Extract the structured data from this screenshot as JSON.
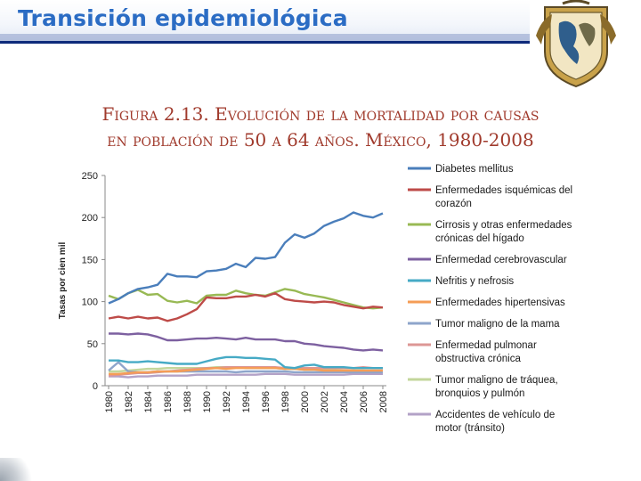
{
  "slide": {
    "title": "Transición epidemiológica"
  },
  "logo": {
    "name": "unam-crest"
  },
  "figure": {
    "line1": "Figura 2.13. Evolución de la mortalidad por causas",
    "line2": "en población de 50 a 64 años. México, 1980-2008"
  },
  "chart_data": {
    "type": "line",
    "ylabel": "Tasas por cien mil",
    "xlabel": "",
    "ylim": [
      0,
      250
    ],
    "yticks": [
      0,
      50,
      100,
      150,
      200,
      250
    ],
    "x": [
      1980,
      1981,
      1982,
      1983,
      1984,
      1985,
      1986,
      1987,
      1988,
      1989,
      1990,
      1991,
      1992,
      1993,
      1994,
      1995,
      1996,
      1997,
      1998,
      1999,
      2000,
      2001,
      2002,
      2003,
      2004,
      2005,
      2006,
      2007,
      2008
    ],
    "xticks": [
      1980,
      1982,
      1984,
      1986,
      1988,
      1990,
      1992,
      1994,
      1996,
      1998,
      2000,
      2002,
      2004,
      2006,
      2008
    ],
    "legend_position": "right",
    "series": [
      {
        "name": "Diabetes mellitus",
        "color": "#4a7ebb",
        "label_lines": [
          "Diabetes mellitus"
        ],
        "values": [
          98,
          103,
          110,
          115,
          117,
          120,
          133,
          130,
          130,
          129,
          136,
          137,
          139,
          145,
          141,
          152,
          151,
          153,
          170,
          180,
          176,
          181,
          190,
          195,
          199,
          206,
          202,
          200,
          205
        ]
      },
      {
        "name": "Enfermedades isquémicas del corazón",
        "color": "#be4b48",
        "label_lines": [
          "Enfermedades isquémicas del",
          "corazón"
        ],
        "values": [
          80,
          82,
          80,
          82,
          80,
          81,
          77,
          80,
          85,
          91,
          105,
          104,
          104,
          106,
          106,
          108,
          106,
          110,
          103,
          101,
          100,
          99,
          100,
          99,
          96,
          94,
          92,
          94,
          93
        ]
      },
      {
        "name": "Cirrosis y otras enfermedades crónicas del hígado",
        "color": "#98b954",
        "label_lines": [
          "Cirrosis y otras enfermedades",
          "crónicas del hígado"
        ],
        "values": [
          107,
          103,
          110,
          114,
          108,
          109,
          101,
          99,
          101,
          98,
          107,
          108,
          108,
          113,
          110,
          108,
          107,
          111,
          115,
          113,
          109,
          107,
          105,
          102,
          99,
          96,
          93,
          92,
          93
        ]
      },
      {
        "name": "Enfermedad cerebrovascular",
        "color": "#7d60a0",
        "label_lines": [
          "Enfermedad cerebrovascular"
        ],
        "values": [
          62,
          62,
          61,
          62,
          61,
          58,
          54,
          54,
          55,
          56,
          56,
          57,
          56,
          55,
          57,
          55,
          55,
          55,
          53,
          53,
          50,
          49,
          47,
          46,
          45,
          43,
          42,
          43,
          42
        ]
      },
      {
        "name": "Nefritis y nefrosis",
        "color": "#46aac5",
        "label_lines": [
          "Nefritis y nefrosis"
        ],
        "values": [
          30,
          30,
          28,
          28,
          29,
          28,
          27,
          26,
          26,
          26,
          29,
          32,
          34,
          34,
          33,
          33,
          32,
          31,
          22,
          21,
          24,
          25,
          22,
          22,
          22,
          21,
          21,
          21,
          21
        ]
      },
      {
        "name": "Enfermedades hipertensivas",
        "color": "#f59d56",
        "label_lines": [
          "Enfermedades hipertensivas"
        ],
        "values": [
          14,
          14,
          15,
          16,
          16,
          17,
          17,
          17,
          18,
          19,
          20,
          21,
          20,
          21,
          21,
          21,
          21,
          21,
          20,
          20,
          19,
          19,
          18,
          18,
          18,
          18,
          18,
          18,
          18
        ]
      },
      {
        "name": "Tumor maligno de la mama",
        "color": "#8ea5cb",
        "label_lines": [
          "Tumor maligno de la mama"
        ],
        "values": [
          18,
          28,
          17,
          16,
          16,
          17,
          17,
          17,
          17,
          17,
          17,
          17,
          17,
          16,
          17,
          17,
          17,
          17,
          17,
          16,
          16,
          16,
          16,
          16,
          16,
          16,
          16,
          16,
          16
        ]
      },
      {
        "name": "Enfermedad pulmonar obstructiva crónica",
        "color": "#dd9795",
        "label_lines": [
          "Enfermedad pulmonar",
          "obstructiva crónica"
        ],
        "values": [
          12,
          13,
          14,
          15,
          15,
          16,
          17,
          18,
          19,
          20,
          21,
          21,
          22,
          22,
          22,
          22,
          22,
          22,
          21,
          21,
          21,
          21,
          21,
          21,
          21,
          21,
          22,
          21,
          21
        ]
      },
      {
        "name": "Tumor maligno de tráquea, bronquios y pulmón",
        "color": "#c3d69b",
        "label_lines": [
          "Tumor maligno de tráquea,",
          "bronquios y pulmón"
        ],
        "values": [
          17,
          17,
          18,
          19,
          20,
          20,
          21,
          21,
          21,
          21,
          21,
          22,
          22,
          22,
          21,
          21,
          21,
          21,
          20,
          20,
          19,
          19,
          19,
          19,
          18,
          18,
          18,
          17,
          17
        ]
      },
      {
        "name": "Accidentes de vehículo de motor (tránsito)",
        "color": "#b3a2c7",
        "label_lines": [
          "Accidentes de vehículo de",
          "motor (tránsito)"
        ],
        "values": [
          11,
          11,
          10,
          11,
          11,
          12,
          12,
          12,
          12,
          13,
          13,
          13,
          13,
          13,
          13,
          13,
          14,
          14,
          14,
          13,
          13,
          13,
          13,
          13,
          13,
          14,
          14,
          14,
          14
        ]
      }
    ]
  }
}
